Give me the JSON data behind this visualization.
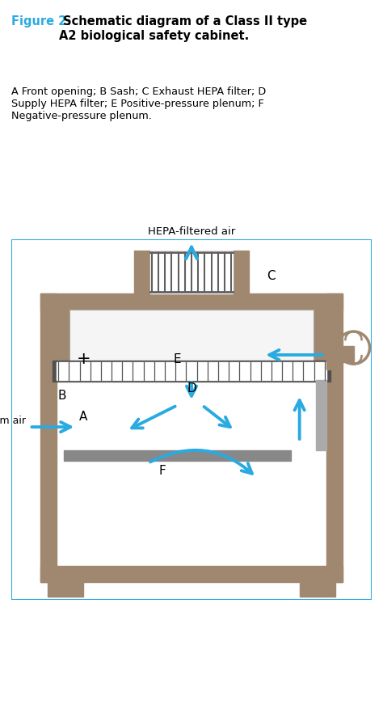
{
  "title_fig": "Figure 2.",
  "title_fig_color": "#29aae1",
  "title_rest": " Schematic diagram of a Class II type\nA2 biological safety cabinet.",
  "caption": "A Front opening; B Sash; C Exhaust HEPA filter; D\nSupply HEPA filter; E Positive-pressure plenum; F\nNegative-pressure plenum.",
  "box_border": "#29aae1",
  "wall_color": "#a08870",
  "filter_dark": "#606060",
  "filter_light": "#d0d0d0",
  "arrow_color": "#29aae1",
  "bg_color": "#ffffff",
  "hepa_text": "HEPA-filtered air",
  "room_air_text": "Room air"
}
